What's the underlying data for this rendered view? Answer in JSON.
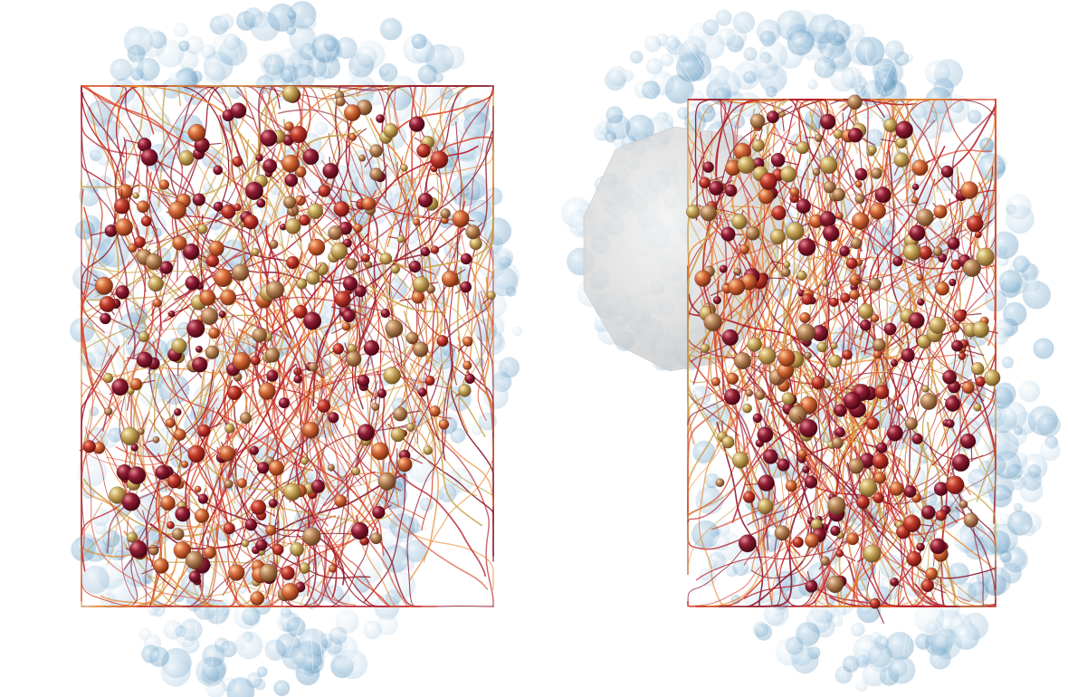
{
  "image": {
    "description_free": true,
    "panels": [
      {
        "id": "left",
        "view": "frontal",
        "shell_color": "#6fa3c7",
        "fiber_palette": [
          "#b51a26",
          "#d9452a",
          "#e8842c",
          "#c9a24a",
          "#8c1c2e"
        ],
        "sphere_palette": [
          "#7a1428",
          "#a3202c",
          "#c0392b",
          "#c9a85c",
          "#b8865a",
          "#d66a3a"
        ]
      },
      {
        "id": "right",
        "view": "lateral",
        "shell_color": "#6fa3c7",
        "hull_color": "#d8d8d8",
        "fiber_palette": [
          "#b51a26",
          "#d9452a",
          "#e8842c",
          "#c9a24a",
          "#8c1c2e"
        ],
        "sphere_palette": [
          "#7a1428",
          "#a3202c",
          "#c0392b",
          "#c9a85c",
          "#b8865a",
          "#d66a3a"
        ]
      }
    ]
  }
}
